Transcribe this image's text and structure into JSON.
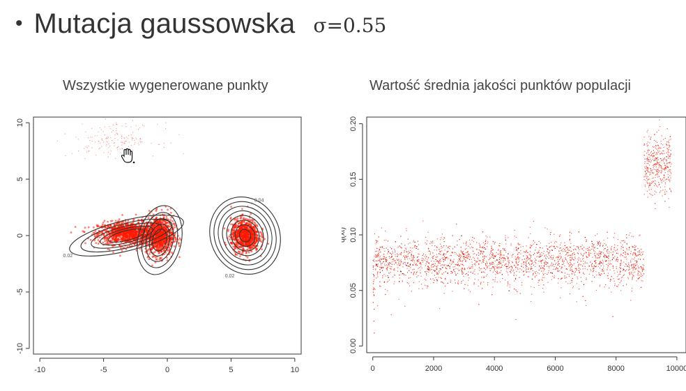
{
  "slide": {
    "bullet": "•",
    "heading": "Mutacja gaussowska",
    "sigma_label": "σ=0.55"
  },
  "colors": {
    "points": "#ff1a00",
    "contour": "#333333",
    "axis": "#333333"
  },
  "chart_data": [
    {
      "type": "scatter",
      "title": "Wszystkie wygenerowane punkty",
      "xlabel": "",
      "ylabel": "",
      "xlim": [
        -10.5,
        10.5
      ],
      "ylim": [
        -10.5,
        10.5
      ],
      "x_ticks": [
        -10,
        -5,
        0,
        5,
        10
      ],
      "y_ticks": [
        -10,
        -5,
        0,
        5,
        10
      ],
      "x_tick_labels": [
        "-10",
        "-5",
        "0",
        "5",
        "10"
      ],
      "y_tick_labels": [
        "-10",
        "-5",
        "0",
        "5",
        "10"
      ],
      "point_clusters": [
        {
          "cx": -3.0,
          "cy": 0.2,
          "sx": 2.2,
          "sy": 0.9
        },
        {
          "cx": -0.6,
          "cy": 0.0,
          "sx": 1.0,
          "sy": 1.6
        },
        {
          "cx": 6.1,
          "cy": 0.0,
          "sx": 1.0,
          "sy": 1.3
        },
        {
          "cx": -4.0,
          "cy": 8.5,
          "sx": 3.0,
          "sy": 1.3
        }
      ],
      "contour_levels": [
        {
          "label": "0.02",
          "label_x": -7.8,
          "label_y": -1.9
        },
        {
          "label": "0.02",
          "label_x": 4.9,
          "label_y": -3.7
        },
        {
          "label": "0.04",
          "label_x": 7.2,
          "label_y": 3.0
        }
      ]
    },
    {
      "type": "scatter",
      "title": "Wartość średnia jakości punktów populacji",
      "xlabel": "",
      "ylabel": "q(xt)",
      "xlim": [
        -200,
        10300
      ],
      "ylim": [
        -0.006,
        0.206
      ],
      "x_ticks": [
        0,
        2000,
        4000,
        6000,
        8000,
        10000
      ],
      "y_ticks": [
        0.0,
        0.05,
        0.1,
        0.15,
        0.2
      ],
      "x_tick_labels": [
        "0",
        "2000",
        "4000",
        "6000",
        "8000",
        "10000"
      ],
      "y_tick_labels": [
        "0.00",
        "0.05",
        "0.10",
        "0.15",
        "0.20"
      ],
      "segments": [
        {
          "x_from": 0,
          "x_to": 8900,
          "mean": 0.077,
          "spread": 0.01
        },
        {
          "x_from": 8900,
          "x_to": 9800,
          "mean": 0.163,
          "spread": 0.013
        }
      ]
    }
  ]
}
